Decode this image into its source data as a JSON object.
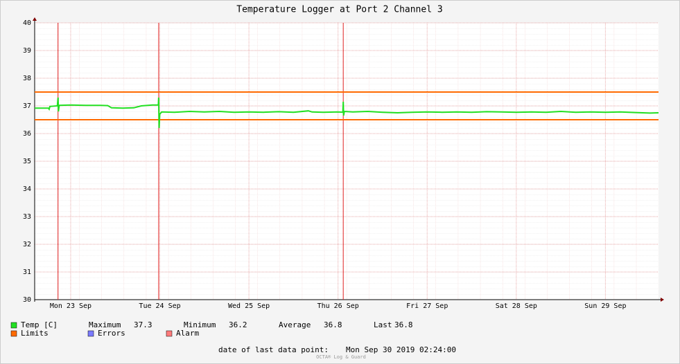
{
  "chart_data": {
    "type": "line",
    "title": "Temperature Logger at Port 2 Channel 3",
    "xlim": [
      -9.7,
      158.3
    ],
    "xticks": [
      {
        "value": 0,
        "label": "Mon 23 Sep"
      },
      {
        "value": 24,
        "label": "Tue 24 Sep"
      },
      {
        "value": 48,
        "label": "Wed 25 Sep"
      },
      {
        "value": 72,
        "label": "Thu 26 Sep"
      },
      {
        "value": 96,
        "label": "Fri 27 Sep"
      },
      {
        "value": 120,
        "label": "Sat 28 Sep"
      },
      {
        "value": 144,
        "label": "Sun 29 Sep"
      }
    ],
    "ylim": [
      30,
      40
    ],
    "yticks": [
      30,
      31,
      32,
      33,
      34,
      35,
      36,
      37,
      38,
      39,
      40
    ],
    "grid": true,
    "x": [
      -9.7,
      -6,
      -5.8,
      -5.6,
      -3.6,
      -3.4,
      -3.3,
      -3.1,
      0,
      4,
      8,
      10,
      11,
      14,
      17,
      19,
      22,
      23.6,
      23.7,
      23.8,
      24,
      24.5,
      28,
      32,
      36,
      40,
      44,
      48,
      52,
      56,
      60,
      64,
      65,
      68,
      72,
      73.3,
      73.4,
      73.5,
      73.7,
      76,
      80,
      84,
      88,
      92,
      96,
      100,
      104,
      108,
      112,
      116,
      120,
      124,
      128,
      132,
      136,
      140,
      144,
      148,
      152,
      156,
      158.3
    ],
    "series": [
      {
        "name": "Temp [C]",
        "color": "#22e022",
        "values": [
          36.92,
          36.92,
          36.88,
          36.98,
          37.0,
          37.3,
          36.8,
          37.02,
          37.03,
          37.02,
          37.02,
          37.01,
          36.93,
          36.92,
          36.93,
          37.0,
          37.03,
          37.03,
          37.3,
          36.2,
          36.7,
          36.78,
          36.77,
          36.8,
          36.78,
          36.8,
          36.77,
          36.78,
          36.77,
          36.79,
          36.77,
          36.82,
          36.78,
          36.77,
          36.78,
          36.77,
          37.15,
          36.65,
          36.8,
          36.78,
          36.8,
          36.77,
          36.75,
          36.77,
          36.78,
          36.77,
          36.78,
          36.77,
          36.79,
          36.78,
          36.77,
          36.78,
          36.77,
          36.8,
          36.77,
          36.78,
          36.77,
          36.78,
          36.76,
          36.74,
          36.75
        ]
      }
    ],
    "limits": {
      "name": "Limits",
      "color": "#ff6a00",
      "values": [
        37.5,
        36.5
      ]
    },
    "errors": {
      "name": "Errors",
      "color": "#7b7bff"
    },
    "alarm": {
      "name": "Alarm",
      "color": "#ff7b7b",
      "line_color": "#e02020",
      "x": [
        -3.4,
        23.7,
        73.4
      ]
    },
    "stats": [
      {
        "label": "Maximum",
        "value": 37.3
      },
      {
        "label": "Minimum",
        "value": 36.2
      },
      {
        "label": "Average",
        "value": 36.8
      },
      {
        "label": "Last",
        "value": 36.8
      }
    ],
    "footer": {
      "label": "date of last data point:",
      "value": "Mon Sep 30 2019 02:24:00"
    },
    "watermark": "OCTA® Log & Guard"
  }
}
